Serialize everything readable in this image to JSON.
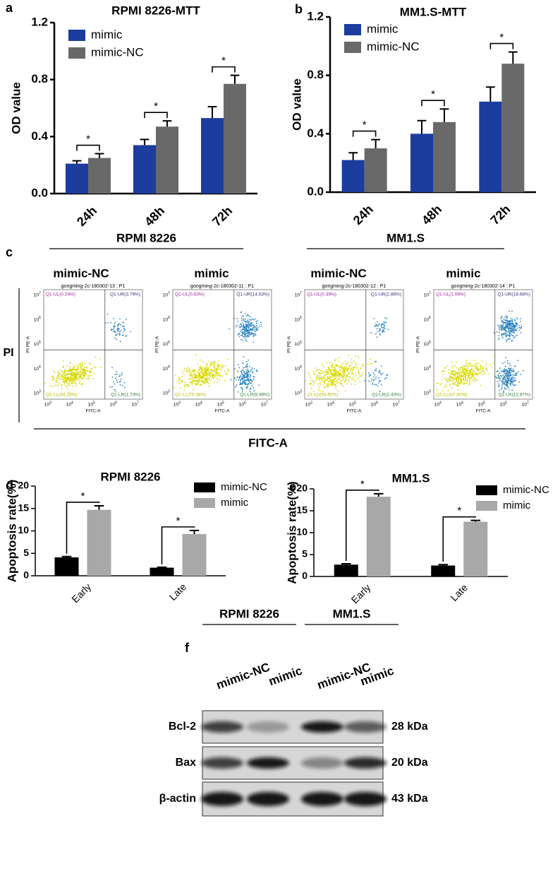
{
  "chart_data": [
    {
      "type": "bar",
      "panel": "a",
      "title": "RPMI 8226-MTT",
      "y_label": "OD value",
      "categories": [
        "24h",
        "48h",
        "72h"
      ],
      "series": [
        {
          "name": "mimic",
          "color": "#1c3c9e",
          "values": [
            0.21,
            0.34,
            0.53
          ],
          "errors": [
            0.02,
            0.04,
            0.08
          ]
        },
        {
          "name": "mimic-NC",
          "color": "#696969",
          "values": [
            0.25,
            0.47,
            0.77
          ],
          "errors": [
            0.03,
            0.04,
            0.06
          ]
        }
      ],
      "ylim": [
        0,
        1.2
      ],
      "yticks": [
        {
          "value": 0,
          "label": "0.0"
        },
        0.4,
        0.8,
        1.2
      ],
      "legend": "upper left",
      "annotations": [
        "*",
        "*",
        "*"
      ]
    },
    {
      "type": "bar",
      "panel": "b",
      "title": "MM1.S-MTT",
      "y_label": "OD value",
      "categories": [
        "24h",
        "48h",
        "72h"
      ],
      "series": [
        {
          "name": "mimic",
          "color": "#1c3c9e",
          "values": [
            0.22,
            0.4,
            0.62
          ],
          "errors": [
            0.05,
            0.09,
            0.1
          ]
        },
        {
          "name": "mimic-NC",
          "color": "#696969",
          "values": [
            0.3,
            0.48,
            0.88
          ],
          "errors": [
            0.06,
            0.09,
            0.08
          ]
        }
      ],
      "ylim": [
        0,
        1.2
      ],
      "yticks": [
        {
          "value": 0,
          "label": "0.0"
        },
        0.4,
        0.8,
        1.2
      ],
      "legend": "upper left",
      "annotations": [
        "*",
        "*",
        "*"
      ]
    },
    {
      "type": "bar",
      "panel": "d",
      "title": "RPMI 8226",
      "y_label": "Apoptosis rate(%)",
      "categories": [
        "Early",
        "Late"
      ],
      "series": [
        {
          "name": "mimic-NC",
          "color": "#000000",
          "values": [
            4.1,
            1.8
          ],
          "errors": [
            0.2,
            0.1
          ]
        },
        {
          "name": "mimic",
          "color": "#a8a8a8",
          "values": [
            14.7,
            9.3
          ],
          "errors": [
            0.9,
            0.8
          ]
        }
      ],
      "ylim": [
        0,
        20
      ],
      "yticks": [
        0,
        5,
        10,
        15,
        20
      ],
      "legend": "upper right",
      "annotations": [
        "*",
        "*"
      ]
    },
    {
      "type": "bar",
      "panel": "e",
      "title": "MM1.S",
      "y_label": "Apoptosis rate(%)",
      "categories": [
        "Early",
        "Late"
      ],
      "series": [
        {
          "name": "mimic-NC",
          "color": "#000000",
          "values": [
            2.7,
            2.5
          ],
          "errors": [
            0.2,
            0.2
          ]
        },
        {
          "name": "mimic",
          "color": "#a8a8a8",
          "values": [
            18.2,
            12.5
          ],
          "errors": [
            0.7,
            0.3
          ]
        }
      ],
      "ylim": [
        0,
        20
      ],
      "yticks": [
        0,
        5,
        10,
        15,
        20
      ],
      "legend": "upper right",
      "annotations": [
        "*",
        "*"
      ]
    }
  ],
  "flow": {
    "panel": "c",
    "groups": [
      {
        "name": "RPMI 8226",
        "conditions": [
          "mimic-NC",
          "mimic"
        ]
      },
      {
        "name": "MM1.S",
        "conditions": [
          "mimic-NC",
          "mimic"
        ]
      }
    ],
    "y_title": "PI",
    "x_title": "FITC-A",
    "y_axis_label": "PI PE-A",
    "x_axis_label": "FITC-A",
    "tick_base": "10",
    "tick_exponents": [
      "3",
      "4",
      "5",
      "6",
      "7"
    ],
    "plots": [
      {
        "title": "gongming-2c-180302-13 : P1",
        "UL": "Q1-UL(0.29%)",
        "UR": "Q1-UR(3.79%)",
        "LL": "Q1-LL(94.19%)",
        "LR": "Q1-LR(1.73%)"
      },
      {
        "title": "gongming-2c-180302-11 : P1",
        "UL": "Q1-UL(0.63%)",
        "UR": "Q1-UR(14.53%)",
        "LL": "Q1-LL(75.38%)",
        "LR": "Q1-LR(9.46%)"
      },
      {
        "title": "gongming-2c-180302-12 : P1",
        "UL": "Q1-UL(0.39%)",
        "UR": "Q1-UR(2.86%)",
        "LL": "Q1-LL(94.32%)",
        "LR": "Q1-LR(2.43%)"
      },
      {
        "title": "gongming-2c-180302-14 : P1",
        "UL": "Q1-UL(1.06%)",
        "UR": "Q1-UR(18.68%)",
        "LL": "Q1-LL(67.40%)",
        "LR": "Q1-LR(12.87%)"
      }
    ]
  },
  "blot": {
    "panel": "f",
    "groups": [
      {
        "name": "RPMI 8226",
        "lanes": [
          "mimic-NC",
          "mimic"
        ]
      },
      {
        "name": "MM1.S",
        "lanes": [
          "mimic-NC",
          "mimic"
        ]
      }
    ],
    "rows": [
      {
        "name": "Bcl-2",
        "size": "28 kDa"
      },
      {
        "name": "Bax",
        "size": "20 kDa"
      },
      {
        "name": "β-actin",
        "size": "43 kDa"
      }
    ]
  }
}
